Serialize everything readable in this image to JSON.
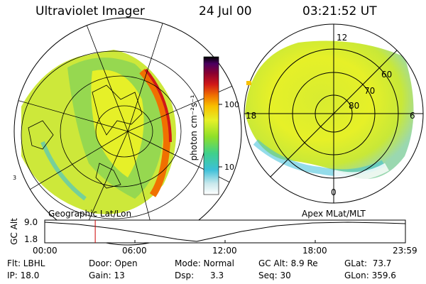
{
  "header": {
    "instrument": "Ultraviolet Imager",
    "date": "24 Jul 00",
    "time": "03:21:52 UT"
  },
  "colorbar": {
    "unit_label": "photon cm⁻²s⁻¹",
    "ticks": [
      "100",
      "10"
    ]
  },
  "left_panel": {
    "projection_label": "Geographic Lat/Lon",
    "edge_label": "3"
  },
  "right_panel": {
    "projection_label": "Apex MLat/MLT",
    "mlt_labels": {
      "top": "12",
      "left": "18",
      "right": "6",
      "bottom": "0"
    },
    "mlat_labels": [
      "60",
      "70",
      "80"
    ]
  },
  "altitude_strip": {
    "axis_label": "GC Alt",
    "y_top": "9.0",
    "y_bottom": "1.8",
    "x_ticks": [
      "00:00",
      "06:00",
      "12:00",
      "18:00",
      "23:59"
    ],
    "marker_time_hours": 3.36
  },
  "status": {
    "row1": {
      "flt": "Flt: LBHL",
      "door": "Door: Open",
      "mode": "Mode: Normal",
      "gc_alt": "GC Alt: 8.9 Re",
      "glat": "GLat:  73.7"
    },
    "row2": {
      "ip": "IP: 18.0",
      "gain": "Gain: 13",
      "dsp": "Dsp:      3.3",
      "seq": "Seq: 30",
      "glon": "GLon: 359.6"
    }
  },
  "colors": {
    "bar_stops": [
      "#ffffff",
      "#c9e8ec",
      "#3cc0d8",
      "#3fd08a",
      "#8fe02a",
      "#e6f028",
      "#f8c000",
      "#f07000",
      "#d01818",
      "#8a0030",
      "#4a0060",
      "#000000"
    ],
    "marker": "#cc0000"
  }
}
